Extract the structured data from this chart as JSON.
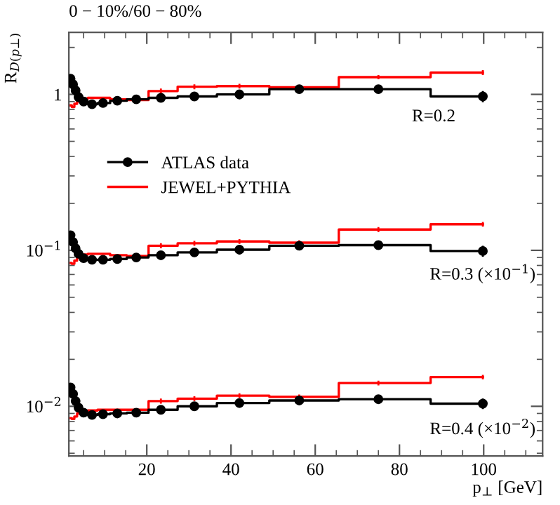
{
  "chart_data": {
    "type": "step",
    "title": "0 − 10%/60 − 80%",
    "xlabel": "p$_{⊥}$ [GeV]",
    "ylabel": "R$_{D(p⊥)}$",
    "x": [
      1.9,
      2.5,
      3.1,
      3.8,
      5,
      7,
      9.6,
      13,
      17.5,
      23.35,
      31.3,
      42,
      56.2,
      75,
      99.8
    ],
    "series": [
      {
        "name": "ATLAS data",
        "marker": "circle",
        "color": "#000000",
        "values": [
          1.26,
          1.16,
          1.06,
          0.96,
          0.9,
          0.865,
          0.88,
          0.91,
          0.93,
          0.95,
          0.97,
          1.0,
          1.08,
          1.08,
          0.97
        ],
        "errors": [
          null,
          null,
          null,
          null,
          null,
          null,
          null,
          null,
          null,
          null,
          0.05,
          0.07,
          0.05,
          0.06,
          0.08
        ]
      },
      {
        "name": "JEWEL+PYTHIA",
        "marker": "none",
        "color": "#ff0000",
        "values": [
          0.85,
          0.83,
          0.87,
          0.9,
          0.94,
          0.95,
          0.95,
          0.93,
          0.92,
          1.05,
          1.12,
          1.13,
          1.11,
          1.29,
          1.38
        ],
        "errors": [
          null,
          null,
          null,
          null,
          null,
          null,
          null,
          null,
          null,
          0.04,
          0.04,
          0.04,
          null,
          0.04,
          0.05
        ]
      },
      {
        "marker": "circle",
        "color": "#000000",
        "values": [
          0.125,
          0.113,
          0.103,
          0.095,
          0.089,
          0.087,
          0.087,
          0.088,
          0.09,
          0.093,
          0.097,
          0.101,
          0.107,
          0.108,
          0.099
        ],
        "errors": [
          null,
          null,
          null,
          null,
          null,
          null,
          null,
          null,
          null,
          null,
          0.005,
          0.007,
          0.005,
          0.006,
          0.008
        ]
      },
      {
        "marker": "none",
        "color": "#ff0000",
        "values": [
          0.083,
          0.082,
          0.086,
          0.09,
          0.094,
          0.095,
          0.095,
          0.093,
          0.092,
          0.107,
          0.111,
          0.114,
          0.112,
          0.136,
          0.147
        ],
        "errors": [
          null,
          null,
          null,
          null,
          null,
          null,
          null,
          null,
          null,
          0.004,
          0.004,
          0.004,
          0.004,
          0.005,
          0.005
        ]
      },
      {
        "marker": "circle",
        "color": "#000000",
        "values": [
          0.0132,
          0.012,
          0.0108,
          0.0098,
          0.0091,
          0.0088,
          0.0089,
          0.009,
          0.0091,
          0.0095,
          0.01,
          0.0105,
          0.0109,
          0.0111,
          0.0104
        ],
        "errors": [
          null,
          null,
          null,
          null,
          null,
          null,
          null,
          null,
          null,
          null,
          0.0005,
          0.0007,
          0.0005,
          0.0006,
          0.0008
        ]
      },
      {
        "marker": "none",
        "color": "#ff0000",
        "values": [
          0.0084,
          0.0083,
          0.0086,
          0.009,
          0.0093,
          0.0094,
          0.0095,
          0.0095,
          0.0095,
          0.0108,
          0.0112,
          0.0117,
          0.0115,
          0.0141,
          0.0154
        ],
        "errors": [
          null,
          null,
          null,
          null,
          null,
          null,
          null,
          null,
          null,
          0.0004,
          0.0004,
          0.0004,
          0.0004,
          0.0005,
          0.0005
        ]
      }
    ],
    "annotations": [
      "R=0.2",
      "R=0.3 (×10$^{−1}$)",
      "R=0.4 (×10$^{−2}$)"
    ],
    "log": "y",
    "xlim": [
      1.5,
      114
    ],
    "ylim": [
      0.0048,
      2.5
    ],
    "xticks": [
      20,
      40,
      60,
      80,
      100
    ],
    "yticks": [
      {
        "value": 1,
        "label": "1"
      },
      {
        "value": 0.1,
        "label": "10$^{−1}$"
      },
      {
        "value": 0.01,
        "label": "10$^{−2}$"
      }
    ],
    "legend": "center left"
  }
}
